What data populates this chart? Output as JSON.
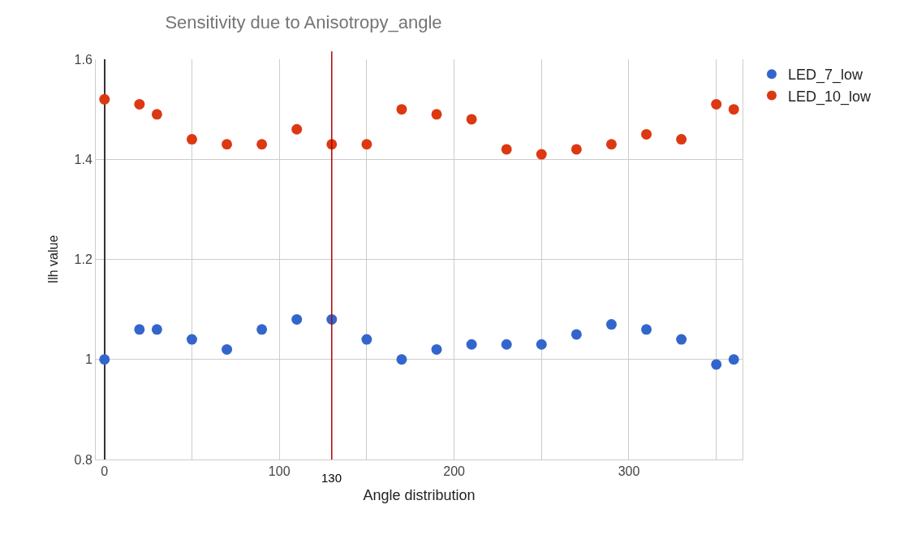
{
  "chart_data": {
    "type": "scatter",
    "title": "Sensitivity due to Anisotropy_angle",
    "xlabel": "Angle distribution",
    "ylabel": "Ilh value",
    "x": [
      0,
      20,
      30,
      50,
      70,
      90,
      110,
      130,
      150,
      170,
      190,
      210,
      230,
      250,
      270,
      290,
      310,
      330,
      350,
      360
    ],
    "series": [
      {
        "name": "LED_7_low",
        "color": "#3366cc",
        "values": [
          1.0,
          1.06,
          1.06,
          1.04,
          1.02,
          1.06,
          1.08,
          1.08,
          1.04,
          1.0,
          1.02,
          1.03,
          1.03,
          1.03,
          1.05,
          1.07,
          1.06,
          1.04,
          0.99,
          1.0
        ]
      },
      {
        "name": "LED_10_low",
        "color": "#dc3912",
        "values": [
          1.52,
          1.51,
          1.49,
          1.44,
          1.43,
          1.43,
          1.46,
          1.43,
          1.43,
          1.5,
          1.49,
          1.48,
          1.42,
          1.41,
          1.42,
          1.43,
          1.45,
          1.44,
          1.51,
          1.5
        ]
      }
    ],
    "xlim": [
      -5,
      365
    ],
    "ylim": [
      0.8,
      1.6
    ],
    "xticks": [
      0,
      {
        "value": 50,
        "label": null
      },
      100,
      {
        "value": 150,
        "label": null
      },
      200,
      {
        "value": 250,
        "label": null
      },
      300,
      {
        "value": 350,
        "label": null
      }
    ],
    "yticks": [
      0.8,
      1,
      1.2,
      1.4,
      1.6
    ],
    "ref_lines": [
      {
        "axis": "x",
        "value": 130,
        "label": "130",
        "color": "#b00000"
      }
    ],
    "grid": true,
    "legend": "top right",
    "marker": "circle"
  }
}
